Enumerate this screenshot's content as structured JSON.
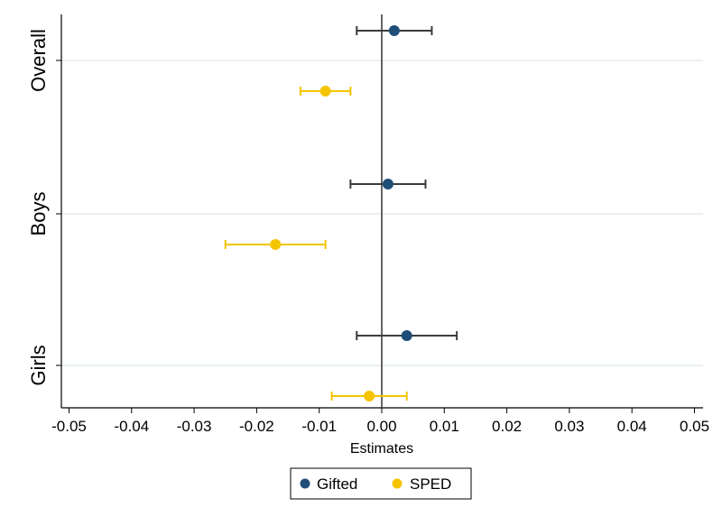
{
  "chart_data": {
    "type": "scatter",
    "subtype": "coefficient-plot",
    "xlabel": "Estimates",
    "xlim": [
      -0.052,
      0.052
    ],
    "x_ticks": [
      -0.05,
      -0.04,
      -0.03,
      -0.02,
      -0.01,
      0.0,
      0.01,
      0.02,
      0.03,
      0.04,
      0.05
    ],
    "x_tick_labels": [
      "-0.05",
      "-0.04",
      "-0.03",
      "-0.02",
      "-0.01",
      "0.00",
      "0.01",
      "0.02",
      "0.03",
      "0.04",
      "0.05"
    ],
    "categories": [
      "Overall",
      "Boys",
      "Girls"
    ],
    "reference_line": 0,
    "grid": true,
    "legend_position": "bottom",
    "series": [
      {
        "name": "Gifted",
        "color": "#1f4e79",
        "points": [
          {
            "category": "Overall",
            "estimate": 0.002,
            "ci_low": -0.004,
            "ci_high": 0.008
          },
          {
            "category": "Boys",
            "estimate": 0.001,
            "ci_low": -0.005,
            "ci_high": 0.007
          },
          {
            "category": "Girls",
            "estimate": 0.004,
            "ci_low": -0.004,
            "ci_high": 0.012
          }
        ]
      },
      {
        "name": "SPED",
        "color": "#f5c400",
        "points": [
          {
            "category": "Overall",
            "estimate": -0.009,
            "ci_low": -0.013,
            "ci_high": -0.005
          },
          {
            "category": "Boys",
            "estimate": -0.017,
            "ci_low": -0.025,
            "ci_high": -0.009
          },
          {
            "category": "Girls",
            "estimate": -0.002,
            "ci_low": -0.008,
            "ci_high": 0.004
          }
        ]
      }
    ]
  }
}
